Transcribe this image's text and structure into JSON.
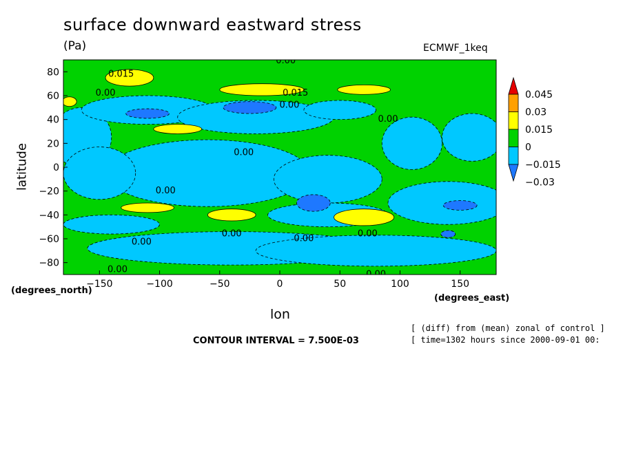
{
  "chart_data": {
    "type": "heatmap",
    "title": "surface downward eastward stress",
    "subtitle": "(Pa)",
    "model_label": "ECMWF_1keq",
    "xlabel": "lon",
    "ylabel": "latitude",
    "x_units": "(degrees_east)",
    "y_units": "(degrees_north)",
    "xlim": [
      -180,
      180
    ],
    "ylim": [
      -90,
      90
    ],
    "x_ticks": [
      -150,
      -100,
      -50,
      0,
      50,
      100,
      150
    ],
    "y_ticks": [
      -80,
      -60,
      -40,
      -20,
      0,
      20,
      40,
      60,
      80
    ],
    "contour_interval": "CONTOUR INTERVAL = 7.500E-03",
    "notes": [
      "[ (diff) from (mean) zonal of control ]",
      "[ time=1302 hours since 2000-09-01 00:"
    ],
    "colorbar": {
      "levels": [
        -0.03,
        -0.015,
        0,
        0.015,
        0.03,
        0.045
      ],
      "labels": [
        "0.045",
        "0.03",
        "0.015",
        "0",
        "−0.015",
        "−0.03"
      ],
      "colors": [
        "#1e78ff",
        "#00c8ff",
        "#00d200",
        "#ffff00",
        "#ffa000",
        "#e60000"
      ]
    },
    "contour_labels": [
      {
        "text": "0.015",
        "lon": -132,
        "lat": 78
      },
      {
        "text": "0.00",
        "lon": -145,
        "lat": 62
      },
      {
        "text": "0.015",
        "lon": 13,
        "lat": 62
      },
      {
        "text": "0.00",
        "lon": 8,
        "lat": 52
      },
      {
        "text": "0.00",
        "lon": 90,
        "lat": 40
      },
      {
        "text": "0.00",
        "lon": -30,
        "lat": 12
      },
      {
        "text": "0.00",
        "lon": -95,
        "lat": -20
      },
      {
        "text": "0.00",
        "lon": -115,
        "lat": -63
      },
      {
        "text": "0.00",
        "lon": -40,
        "lat": -56
      },
      {
        "text": "0.00",
        "lon": 20,
        "lat": -60
      },
      {
        "text": "0.00",
        "lon": 73,
        "lat": -56
      },
      {
        "text": "0.00",
        "lon": -135,
        "lat": -86
      },
      {
        "text": "0.00",
        "lon": 80,
        "lat": -90
      },
      {
        "text": "0.00",
        "lon": 5,
        "lat": 89
      }
    ],
    "regions": [
      {
        "level": 0,
        "lon": 0,
        "lat": 0,
        "rlon": 180,
        "rlat": 90
      },
      {
        "level": -1,
        "lon": -165,
        "lat": 25,
        "rlon": 25,
        "rlat": 25
      },
      {
        "level": -1,
        "lon": -110,
        "lat": 48,
        "rlon": 55,
        "rlat": 12
      },
      {
        "level": -1,
        "lon": -20,
        "lat": 42,
        "rlon": 65,
        "rlat": 14
      },
      {
        "level": -1,
        "lon": 50,
        "lat": 48,
        "rlon": 30,
        "rlat": 8
      },
      {
        "level": -1,
        "lon": 110,
        "lat": 20,
        "rlon": 25,
        "rlat": 22
      },
      {
        "level": -1,
        "lon": 160,
        "lat": 25,
        "rlon": 25,
        "rlat": 20
      },
      {
        "level": -1,
        "lon": -60,
        "lat": -5,
        "rlon": 85,
        "rlat": 28
      },
      {
        "level": -1,
        "lon": -150,
        "lat": -5,
        "rlon": 30,
        "rlat": 22
      },
      {
        "level": -1,
        "lon": 40,
        "lat": -10,
        "rlon": 45,
        "rlat": 20
      },
      {
        "level": -1,
        "lon": 140,
        "lat": -30,
        "rlon": 50,
        "rlat": 18
      },
      {
        "level": -1,
        "lon": -40,
        "lat": -68,
        "rlon": 120,
        "rlat": 14
      },
      {
        "level": -1,
        "lon": 80,
        "lat": -70,
        "rlon": 100,
        "rlat": 13
      },
      {
        "level": -1,
        "lon": -140,
        "lat": -48,
        "rlon": 40,
        "rlat": 8
      },
      {
        "level": -1,
        "lon": 40,
        "lat": -40,
        "rlon": 50,
        "rlat": 10
      },
      {
        "level": -2,
        "lon": -110,
        "lat": 45,
        "rlon": 18,
        "rlat": 4
      },
      {
        "level": -2,
        "lon": -25,
        "lat": 50,
        "rlon": 22,
        "rlat": 5
      },
      {
        "level": -2,
        "lon": 28,
        "lat": -30,
        "rlon": 14,
        "rlat": 7
      },
      {
        "level": -2,
        "lon": 150,
        "lat": -32,
        "rlon": 14,
        "rlat": 4
      },
      {
        "level": -2,
        "lon": 140,
        "lat": -56,
        "rlon": 6,
        "rlat": 3
      },
      {
        "level": 1,
        "lon": -125,
        "lat": 75,
        "rlon": 20,
        "rlat": 7
      },
      {
        "level": 1,
        "lon": -85,
        "lat": 32,
        "rlon": 20,
        "rlat": 4
      },
      {
        "level": 1,
        "lon": -15,
        "lat": 65,
        "rlon": 35,
        "rlat": 5
      },
      {
        "level": 1,
        "lon": 70,
        "lat": 65,
        "rlon": 22,
        "rlat": 4
      },
      {
        "level": 1,
        "lon": -110,
        "lat": -34,
        "rlon": 22,
        "rlat": 4
      },
      {
        "level": 1,
        "lon": -40,
        "lat": -40,
        "rlon": 20,
        "rlat": 5
      },
      {
        "level": 1,
        "lon": 70,
        "lat": -42,
        "rlon": 25,
        "rlat": 7
      },
      {
        "level": 1,
        "lon": -175,
        "lat": 55,
        "rlon": 6,
        "rlat": 4
      }
    ]
  }
}
